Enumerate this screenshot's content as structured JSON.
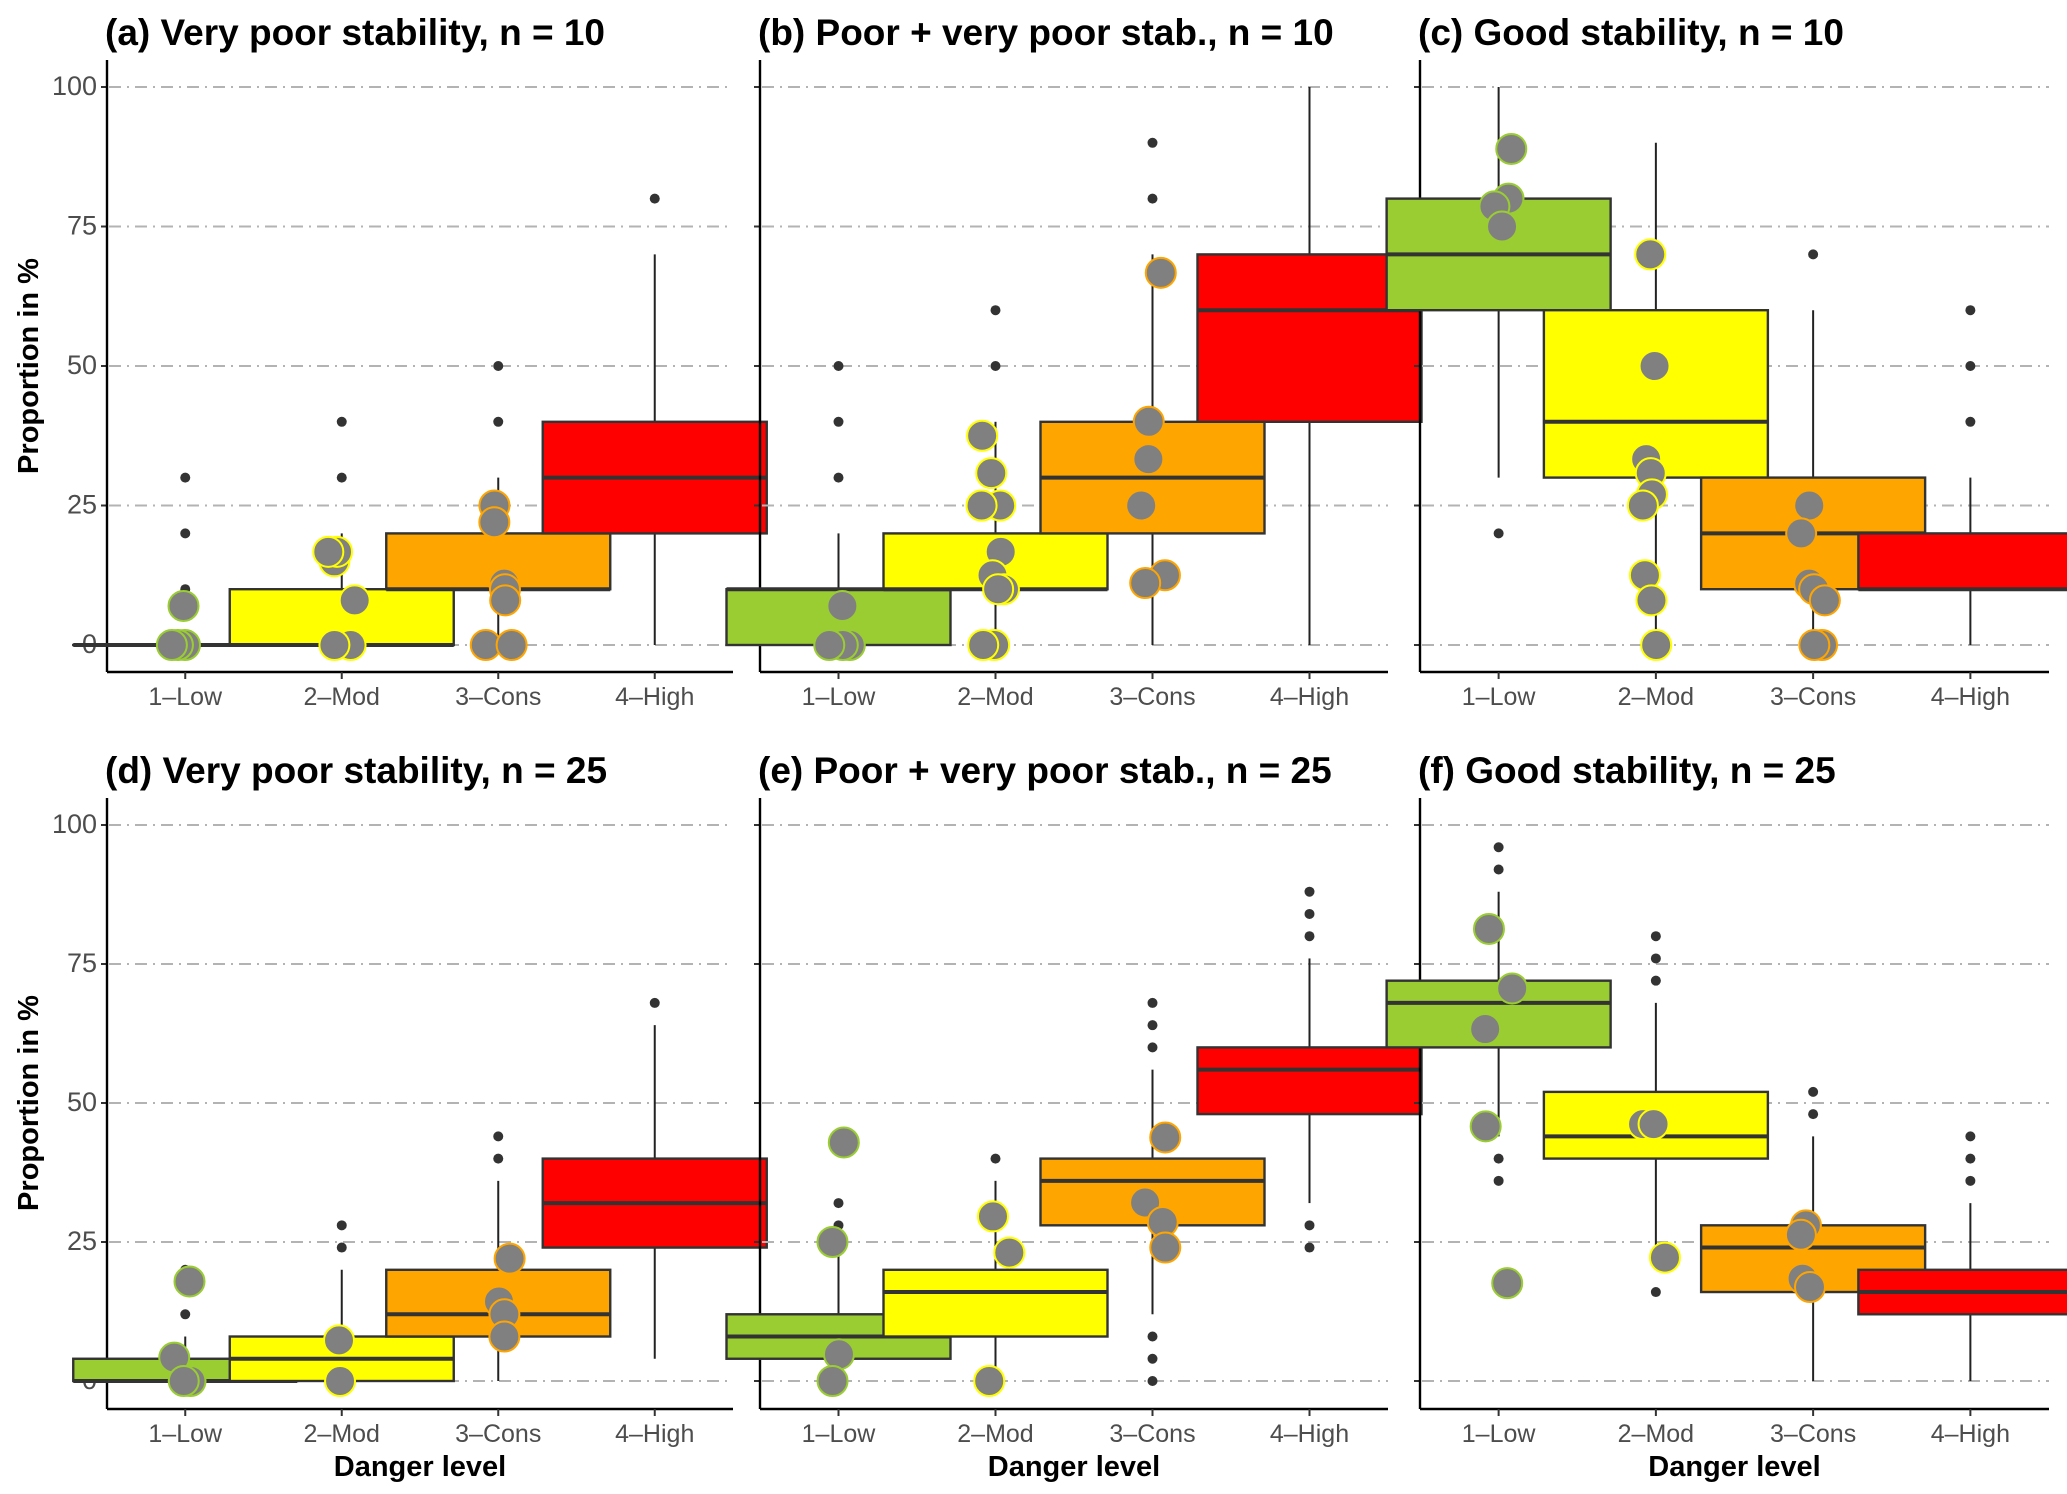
{
  "chart_data": {
    "type": "boxplot",
    "layout": {
      "rows": 2,
      "cols": 3
    },
    "categories": [
      "1–Low",
      "2–Mod",
      "3–Cons",
      "4–High"
    ],
    "category_colors": [
      "#9acd32",
      "#ffff00",
      "#ffa500",
      "#ff0000"
    ],
    "ylabel": "Proportion in %",
    "xlabel": "Danger level",
    "ylim": [
      -6,
      105
    ],
    "yticks": [
      0,
      25,
      50,
      75,
      100
    ],
    "grid": "horizontal dot-dash at major ticks",
    "panels": [
      {
        "title": "(a) Very poor stability, n = 10",
        "boxes": [
          {
            "q1": 0,
            "median": 0,
            "q3": 0,
            "lower": 0,
            "upper": 0,
            "outliers": [
              10,
              20,
              30
            ]
          },
          {
            "q1": 0,
            "median": 0,
            "q3": 10,
            "lower": 0,
            "upper": 20,
            "outliers": [
              30,
              40
            ]
          },
          {
            "q1": 10,
            "median": 10,
            "q3": 20,
            "lower": 0,
            "upper": 30,
            "outliers": [
              40,
              50
            ]
          },
          {
            "q1": 20,
            "median": 30,
            "q3": 40,
            "lower": 0,
            "upper": 70,
            "outliers": [
              80
            ]
          }
        ],
        "points": [
          [
            7,
            0,
            0,
            0
          ],
          [
            15,
            16.7,
            16.7,
            8,
            0,
            0
          ],
          [
            25,
            22,
            11,
            10,
            8,
            0,
            0
          ],
          []
        ]
      },
      {
        "title": "(b) Poor + very poor stab., n = 10",
        "boxes": [
          {
            "q1": 0,
            "median": 10,
            "q3": 10,
            "lower": 0,
            "upper": 20,
            "outliers": [
              30,
              40,
              50
            ]
          },
          {
            "q1": 10,
            "median": 10,
            "q3": 20,
            "lower": 0,
            "upper": 40,
            "outliers": [
              50,
              60
            ]
          },
          {
            "q1": 20,
            "median": 30,
            "q3": 40,
            "lower": 0,
            "upper": 70,
            "outliers": [
              80,
              90
            ]
          },
          {
            "q1": 40,
            "median": 60,
            "q3": 70,
            "lower": 0,
            "upper": 100,
            "outliers": []
          }
        ],
        "points": [
          [
            7,
            0,
            0,
            0
          ],
          [
            37.5,
            30.8,
            25,
            25,
            25,
            16.7,
            12.5,
            10,
            10,
            0,
            0
          ],
          [
            66.7,
            40,
            33.3,
            25,
            12.5,
            11.1
          ],
          []
        ]
      },
      {
        "title": "(c) Good stability, n = 10",
        "boxes": [
          {
            "q1": 60,
            "median": 70,
            "q3": 80,
            "lower": 30,
            "upper": 100,
            "outliers": [
              20
            ]
          },
          {
            "q1": 30,
            "median": 40,
            "q3": 60,
            "lower": 0,
            "upper": 90,
            "outliers": []
          },
          {
            "q1": 10,
            "median": 20,
            "q3": 30,
            "lower": 0,
            "upper": 60,
            "outliers": [
              70
            ]
          },
          {
            "q1": 10,
            "median": 10,
            "q3": 20,
            "lower": 0,
            "upper": 30,
            "outliers": [
              40,
              50,
              60
            ]
          }
        ],
        "points": [
          [
            88.9,
            80,
            78.6,
            75
          ],
          [
            70,
            50,
            50,
            33.3,
            33.3,
            30.8,
            27,
            25,
            12.5,
            8,
            0
          ],
          [
            25,
            20,
            11,
            10,
            8,
            0,
            0
          ],
          []
        ]
      },
      {
        "title": "(d) Very poor stability, n = 25",
        "boxes": [
          {
            "q1": 0,
            "median": 0,
            "q3": 4,
            "lower": 0,
            "upper": 8,
            "outliers": [
              12,
              20
            ]
          },
          {
            "q1": 0,
            "median": 4,
            "q3": 8,
            "lower": 0,
            "upper": 20,
            "outliers": [
              24,
              28
            ]
          },
          {
            "q1": 8,
            "median": 12,
            "q3": 20,
            "lower": 0,
            "upper": 36,
            "outliers": [
              40,
              44
            ]
          },
          {
            "q1": 24,
            "median": 32,
            "q3": 40,
            "lower": 4,
            "upper": 64,
            "outliers": [
              68
            ]
          }
        ],
        "points": [
          [
            17.9,
            4.2,
            0,
            0
          ],
          [
            7.3,
            0
          ],
          [
            22,
            14.3,
            12,
            8
          ],
          []
        ]
      },
      {
        "title": "(e) Poor + very poor stab., n = 25",
        "boxes": [
          {
            "q1": 4,
            "median": 8,
            "q3": 12,
            "lower": 0,
            "upper": 24,
            "outliers": [
              28,
              32
            ]
          },
          {
            "q1": 8,
            "median": 16,
            "q3": 20,
            "lower": 0,
            "upper": 36,
            "outliers": [
              40
            ]
          },
          {
            "q1": 28,
            "median": 36,
            "q3": 40,
            "lower": 12,
            "upper": 56,
            "outliers": [
              0,
              4,
              8,
              60,
              64,
              68
            ]
          },
          {
            "q1": 48,
            "median": 56,
            "q3": 60,
            "lower": 32,
            "upper": 76,
            "outliers": [
              24,
              28,
              80,
              84,
              88
            ]
          }
        ],
        "points": [
          [
            42.9,
            25,
            4.8,
            0
          ],
          [
            29.6,
            23.1,
            0
          ],
          [
            43.8,
            32.1,
            28.6,
            24
          ],
          []
        ]
      },
      {
        "title": "(f) Good stability, n = 25",
        "boxes": [
          {
            "q1": 60,
            "median": 68,
            "q3": 72,
            "lower": 44,
            "upper": 88,
            "outliers": [
              36,
              40,
              92,
              96
            ]
          },
          {
            "q1": 40,
            "median": 44,
            "q3": 52,
            "lower": 20,
            "upper": 68,
            "outliers": [
              16,
              72,
              76,
              80
            ]
          },
          {
            "q1": 16,
            "median": 24,
            "q3": 28,
            "lower": 0,
            "upper": 44,
            "outliers": [
              48,
              52
            ]
          },
          {
            "q1": 12,
            "median": 16,
            "q3": 20,
            "lower": 0,
            "upper": 32,
            "outliers": [
              36,
              40,
              44
            ]
          }
        ],
        "points": [
          [
            81.3,
            70.6,
            63.3,
            45.8,
            17.6
          ],
          [
            46.2,
            46.2,
            22.2
          ],
          [
            28,
            26.3,
            18.4,
            16.9
          ],
          []
        ]
      }
    ]
  }
}
